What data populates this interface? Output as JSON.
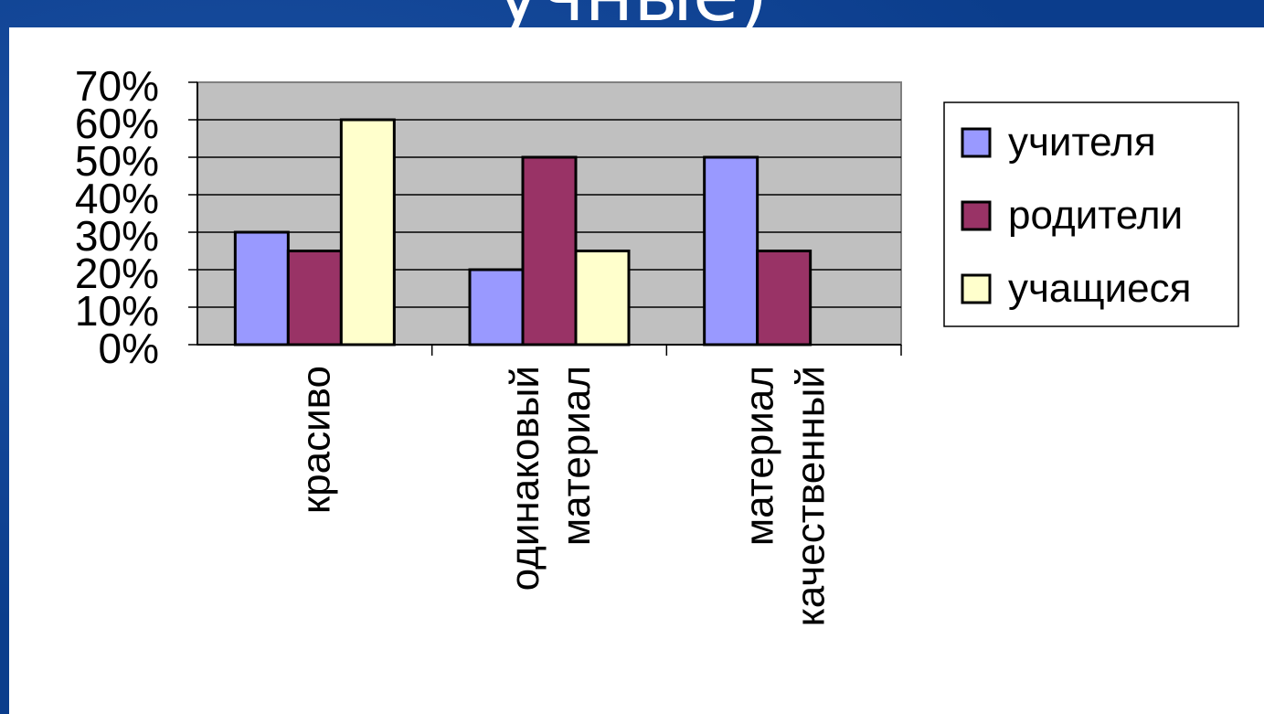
{
  "slide": {
    "title": "учные)"
  },
  "colors": {
    "plot_background": "#c0c0c0",
    "series": [
      "#9999ff",
      "#993366",
      "#ffffcc"
    ]
  },
  "chart_data": {
    "type": "bar",
    "title": "",
    "xlabel": "",
    "ylabel": "",
    "ylim": [
      0,
      70
    ],
    "y_ticks": [
      "0%",
      "10%",
      "20%",
      "30%",
      "40%",
      "50%",
      "60%",
      "70%"
    ],
    "y_unit": "%",
    "grid": true,
    "legend_position": "right",
    "categories": [
      [
        "красиво"
      ],
      [
        "одинаковый",
        "материал"
      ],
      [
        "материал",
        "качественный"
      ]
    ],
    "series": [
      {
        "name": "учителя",
        "values": [
          30,
          20,
          50
        ]
      },
      {
        "name": "родители",
        "values": [
          25,
          50,
          25
        ]
      },
      {
        "name": "учащиеся",
        "values": [
          60,
          25,
          0
        ]
      }
    ]
  }
}
